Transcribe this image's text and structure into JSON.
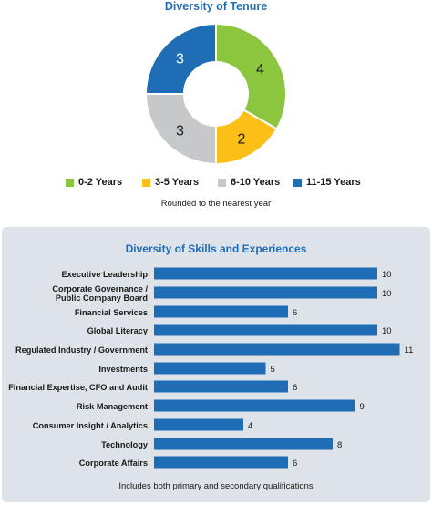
{
  "tenure": {
    "title": "Diversity of Tenure",
    "note": "Rounded to the nearest year"
  },
  "skills": {
    "title": "Diversity of Skills and Experiences",
    "note": "Includes both primary and secondary qualifications"
  },
  "chart_data": [
    {
      "type": "pie",
      "title": "Diversity of Tenure",
      "categories": [
        "0-2 Years",
        "3-5 Years",
        "6-10 Years",
        "11-15 Years"
      ],
      "values": [
        4,
        2,
        3,
        3
      ],
      "colors": [
        "#8cc63f",
        "#fbbf17",
        "#c7c8ca",
        "#1f6db5"
      ],
      "legend": "bottom",
      "donut": true
    },
    {
      "type": "bar",
      "orientation": "horizontal",
      "title": "Diversity of Skills and Experiences",
      "categories": [
        "Executive Leadership",
        "Corporate Governance /\nPublic Company Board",
        "Financial Services",
        "Global Literacy",
        "Regulated Industry / Government",
        "Investments",
        "Financial Expertise, CFO and Audit",
        "Risk Management",
        "Consumer Insight / Analytics",
        "Technology",
        "Corporate Affairs"
      ],
      "values": [
        10,
        10,
        6,
        10,
        11,
        5,
        6,
        9,
        4,
        8,
        6
      ],
      "color": "#1f6db5",
      "xlim": [
        0,
        11
      ]
    }
  ]
}
